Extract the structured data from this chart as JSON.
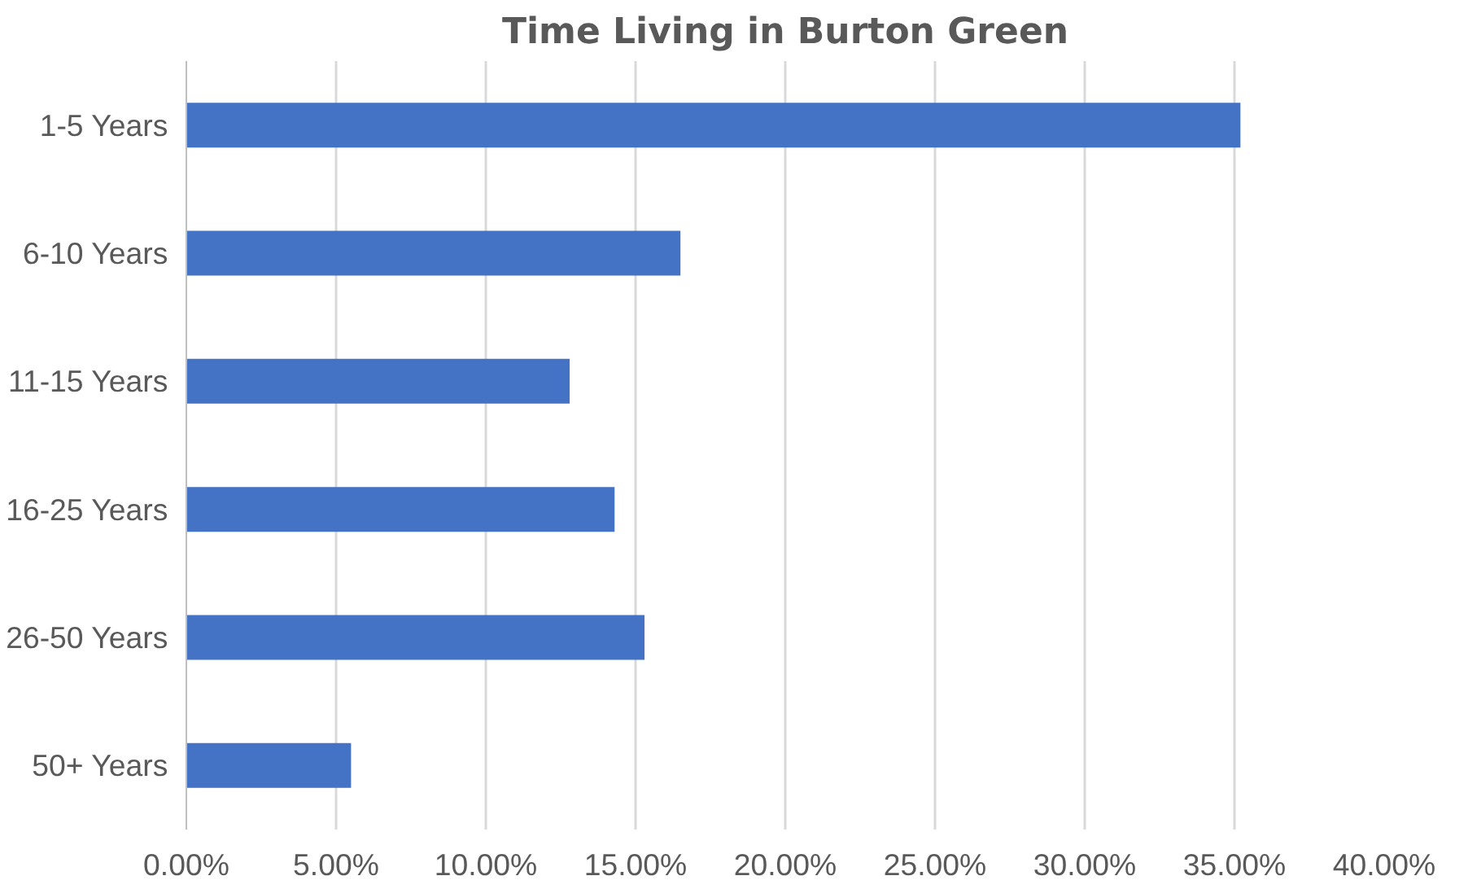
{
  "chart_data": {
    "type": "bar",
    "orientation": "horizontal",
    "title": "Time Living in Burton Green",
    "categories": [
      "1-5 Years",
      "6-10 Years",
      "11-15 Years",
      "16-25 Years",
      "26-50 Years",
      "50+ Years"
    ],
    "values": [
      35.2,
      16.5,
      12.8,
      14.3,
      15.3,
      5.5
    ],
    "color": "#4472c4",
    "xlim": [
      0,
      40
    ],
    "xticks": [
      {
        "value": 0,
        "label": "0.00%"
      },
      {
        "value": 5,
        "label": "5.00%"
      },
      {
        "value": 10,
        "label": "10.00%"
      },
      {
        "value": 15,
        "label": "15.00%"
      },
      {
        "value": 20,
        "label": "20.00%"
      },
      {
        "value": 25,
        "label": "25.00%"
      },
      {
        "value": 30,
        "label": "30.00%"
      },
      {
        "value": 35,
        "label": "35.00%"
      },
      {
        "value": 40,
        "label": "40.00%"
      }
    ],
    "grid": "x"
  }
}
